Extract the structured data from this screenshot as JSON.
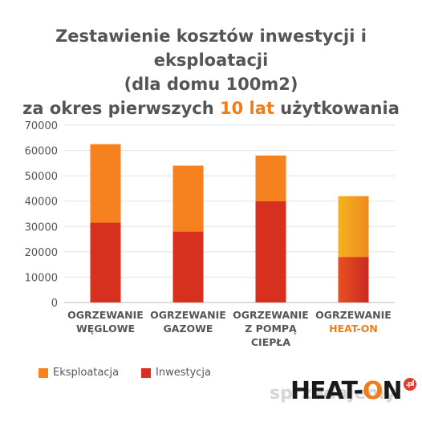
{
  "title": {
    "line1": "Zestawienie kosztów inwestycji i eksploatacji",
    "line2": "(dla domu 100m2)",
    "line3_pre": "za okres pierwszych ",
    "line3_hl": "10 lat",
    "line3_post": " użytkowania"
  },
  "chart_data": {
    "type": "bar",
    "stacked": true,
    "categories": [
      [
        "OGRZEWANIE",
        "WĘGLOWE"
      ],
      [
        "OGRZEWANIE",
        "GAZOWE"
      ],
      [
        "OGRZEWANIE",
        "Z POMPĄ",
        "CIEPŁA"
      ],
      [
        "OGRZEWANIE",
        "HEAT-ON"
      ]
    ],
    "series": [
      {
        "name": "Inwestycja",
        "values": [
          31500,
          28000,
          40000,
          18000
        ],
        "color": "#d7301f"
      },
      {
        "name": "Eksploatacja",
        "values": [
          31000,
          26000,
          18000,
          24000
        ],
        "color": "#f5821f"
      }
    ],
    "highlight_color": "#f07d1a",
    "ylim": [
      0,
      70000
    ],
    "yticks": [
      0,
      10000,
      20000,
      30000,
      40000,
      50000,
      60000,
      70000
    ],
    "grid": true,
    "legend_position": "bottom-left"
  },
  "legend": {
    "eksploatacja": "Eksploatacja",
    "inwestycja": "Inwestycja",
    "eksploatacja_color": "#f5821f",
    "inwestycja_color": "#d7301f"
  },
  "logo": {
    "text_a": "HEAT-",
    "text_o": "O",
    "text_n": "N",
    "badge": ".pl"
  },
  "watermark": "sprzedajemy"
}
